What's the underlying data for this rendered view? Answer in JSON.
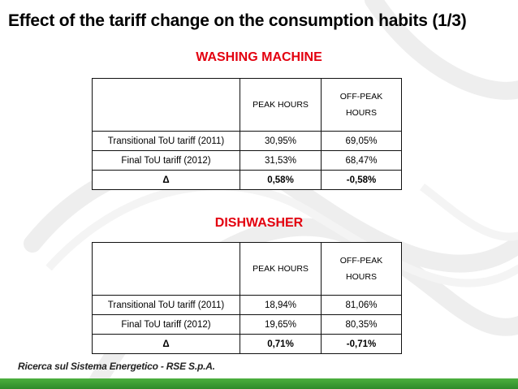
{
  "title": "Effect of the tariff change on the consumption habits (1/3)",
  "sections": [
    {
      "heading": "WASHING MACHINE",
      "columns": {
        "corner": "",
        "peak": "PEAK HOURS",
        "offpeak_line1": "OFF-PEAK",
        "offpeak_line2": "HOURS"
      },
      "rows": [
        {
          "label": "Transitional ToU tariff (2011)",
          "peak": "30,95%",
          "offpeak": "69,05%"
        },
        {
          "label": "Final ToU tariff (2012)",
          "peak": "31,53%",
          "offpeak": "68,47%"
        },
        {
          "label": "Δ",
          "peak": "0,58%",
          "offpeak": "-0,58%"
        }
      ]
    },
    {
      "heading": "DISHWASHER",
      "columns": {
        "corner": "",
        "peak": "PEAK HOURS",
        "offpeak_line1": "OFF-PEAK",
        "offpeak_line2": "HOURS"
      },
      "rows": [
        {
          "label": "Transitional ToU tariff (2011)",
          "peak": "18,94%",
          "offpeak": "81,06%"
        },
        {
          "label": "Final ToU tariff (2012)",
          "peak": "19,65%",
          "offpeak": "80,35%"
        },
        {
          "label": "Δ",
          "peak": "0,71%",
          "offpeak": "-0,71%"
        }
      ]
    }
  ],
  "footer": {
    "text": "Ricerca sul Sistema Energetico - RSE S.p.A."
  },
  "colors": {
    "heading": "#e3000f",
    "peak_header": "#ddf7ea",
    "offpeak_header": "#fffcd4",
    "footer_bar": "#3a9a34"
  }
}
